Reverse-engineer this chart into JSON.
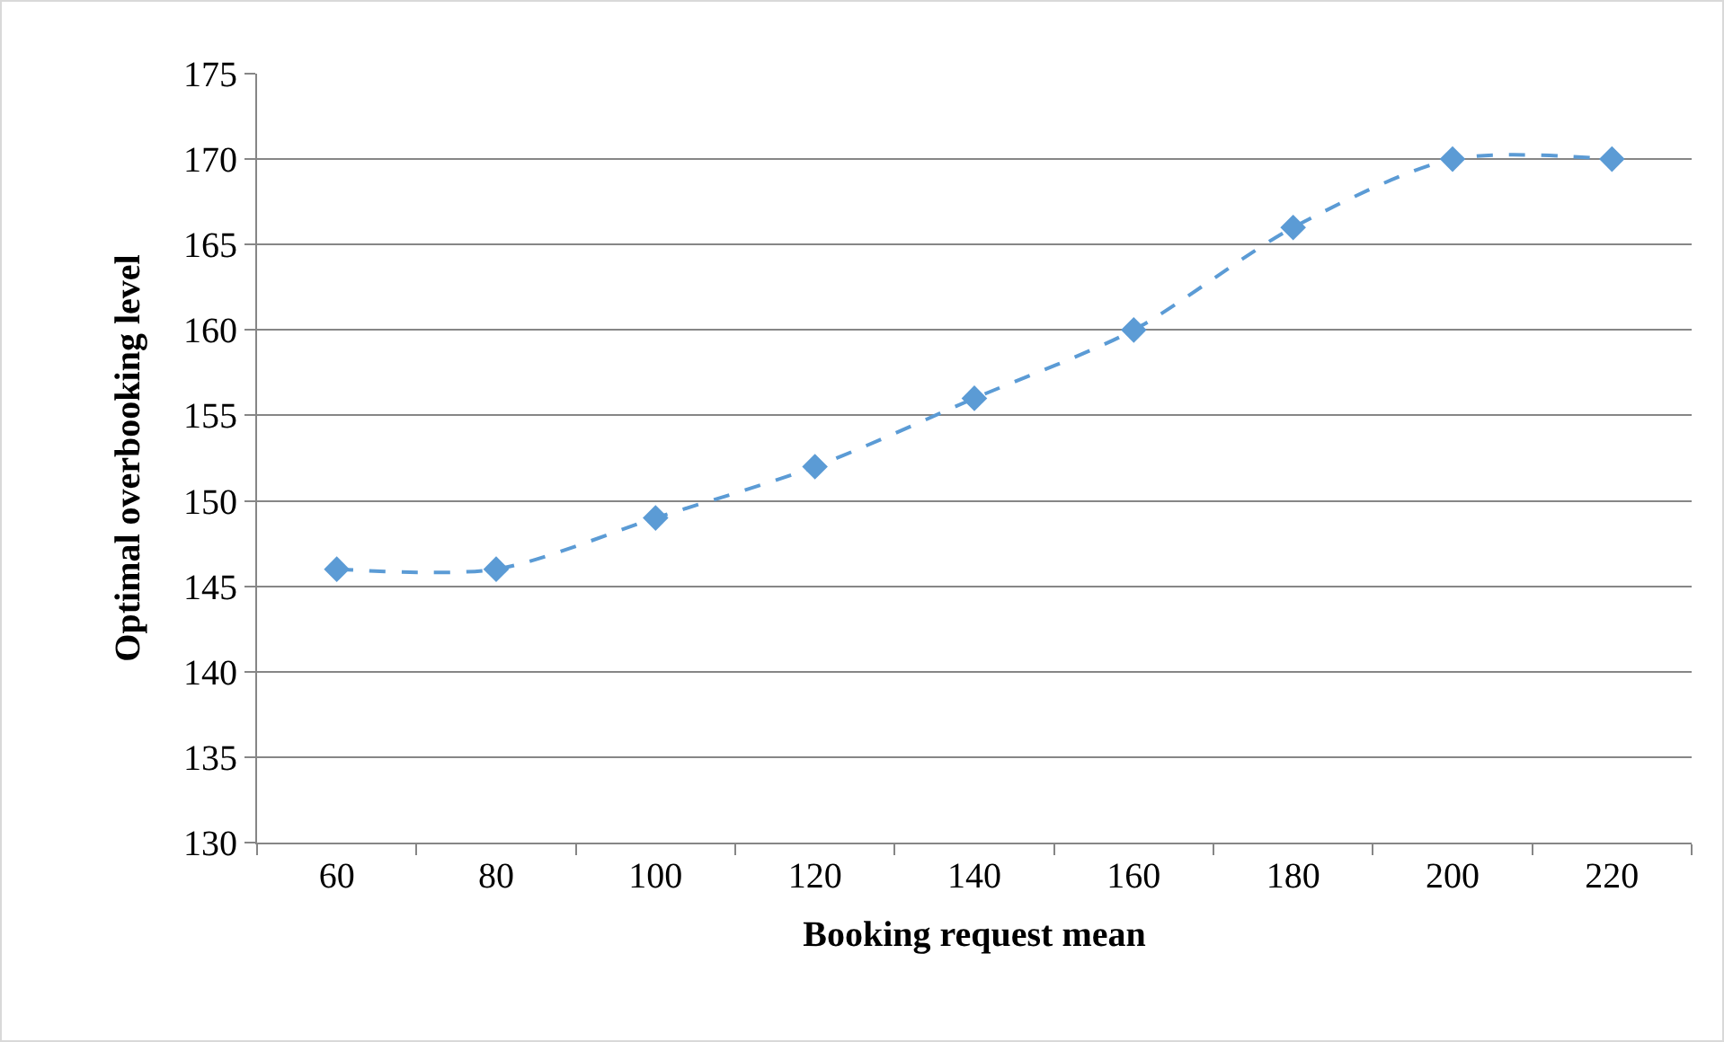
{
  "chart_data": {
    "type": "line",
    "xlabel": "Booking request mean",
    "ylabel": "Optimal overbooking level",
    "categories": [
      "60",
      "80",
      "100",
      "120",
      "140",
      "160",
      "180",
      "200",
      "220"
    ],
    "series": [
      {
        "color": "#5b9bd5",
        "values": [
          146,
          146,
          149,
          152,
          156,
          160,
          166,
          170,
          170
        ]
      }
    ],
    "ylim": [
      130,
      175
    ],
    "yticks": [
      130,
      135,
      140,
      145,
      150,
      155,
      160,
      165,
      170,
      175
    ],
    "grid": "y",
    "legend": false,
    "marker": "diamond",
    "line_style": "dashed"
  }
}
